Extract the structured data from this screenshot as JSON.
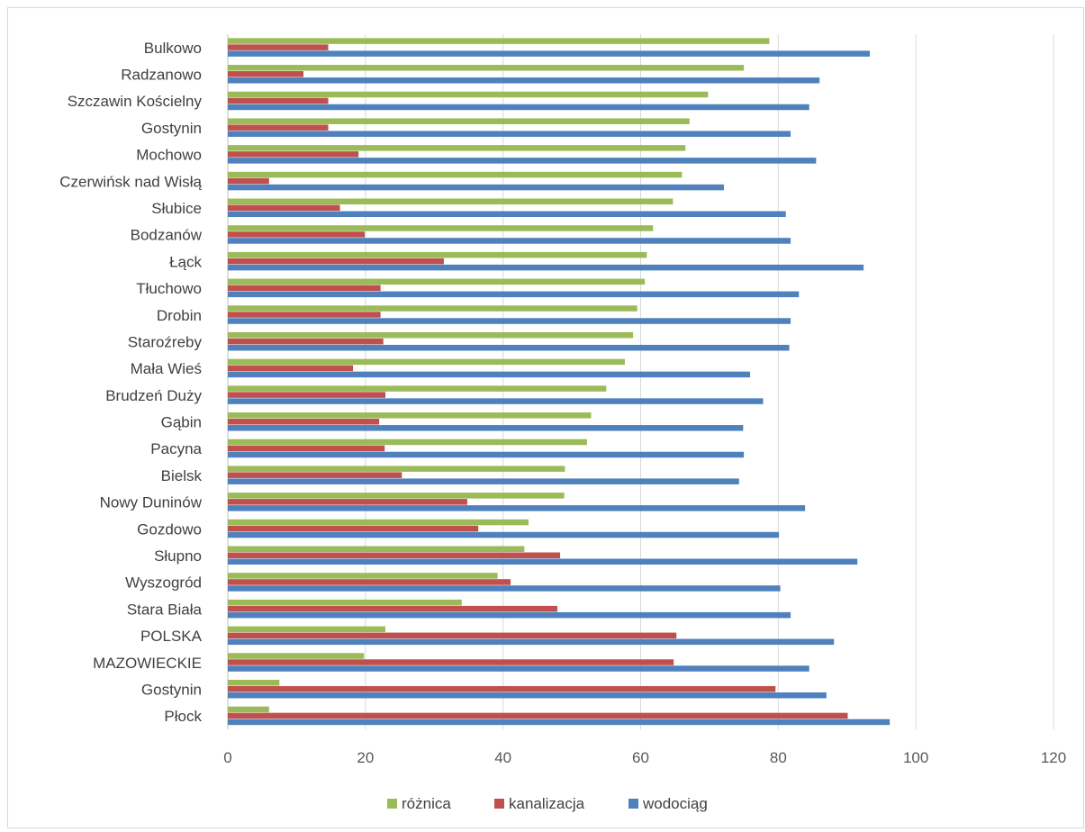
{
  "chart_data": {
    "type": "bar",
    "orientation": "horizontal",
    "categories": [
      "Bulkowo",
      "Radzanowo",
      "Szczawin Kościelny",
      "Gostynin",
      "Mochowo",
      "Czerwińsk nad Wisłą",
      "Słubice",
      "Bodzanów",
      "Łąck",
      "Tłuchowo",
      "Drobin",
      "Staroźreby",
      "Mała Wieś",
      "Brudzeń Duży",
      "Gąbin",
      "Pacyna",
      "Bielsk",
      "Nowy Duninów",
      "Gozdowo",
      "Słupno",
      "Wyszogród",
      "Stara Biała",
      "POLSKA",
      "MAZOWIECKIE",
      "Gostynin",
      "Płock"
    ],
    "series": [
      {
        "name": "różnica",
        "color": "#9bbb59",
        "values": [
          78.7,
          75.0,
          69.8,
          67.1,
          66.5,
          66.0,
          64.7,
          61.8,
          60.9,
          60.6,
          59.5,
          58.9,
          57.7,
          55.0,
          52.8,
          52.2,
          49.0,
          48.9,
          43.7,
          43.1,
          39.2,
          34.0,
          22.9,
          19.8,
          7.5,
          6.0
        ]
      },
      {
        "name": "kanalizacja",
        "color": "#c0504d",
        "values": [
          14.6,
          11.0,
          14.6,
          14.6,
          19.0,
          6.0,
          16.3,
          19.9,
          31.4,
          22.2,
          22.2,
          22.6,
          18.2,
          22.9,
          22.0,
          22.8,
          25.3,
          34.8,
          36.4,
          48.3,
          41.1,
          47.9,
          65.2,
          64.8,
          79.6,
          90.1
        ]
      },
      {
        "name": "wodociąg",
        "color": "#4f81bd",
        "values": [
          93.3,
          86.0,
          84.5,
          81.8,
          85.5,
          72.1,
          81.1,
          81.8,
          92.4,
          83.0,
          81.8,
          81.6,
          75.9,
          77.8,
          74.9,
          75.0,
          74.3,
          83.9,
          80.1,
          91.5,
          80.3,
          81.8,
          88.1,
          84.5,
          87.0,
          96.2
        ]
      }
    ],
    "xlim": [
      0,
      120
    ],
    "xticks": [
      "0",
      "20",
      "40",
      "60",
      "80",
      "100",
      "120"
    ],
    "grid": true,
    "legend_position": "bottom"
  }
}
